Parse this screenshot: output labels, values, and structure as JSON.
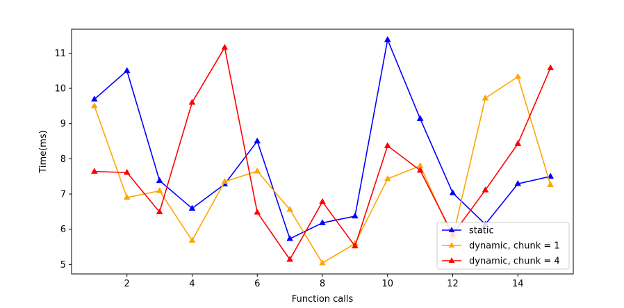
{
  "chart_data": {
    "type": "line",
    "title": "",
    "xlabel": "Function calls",
    "ylabel": "Time(ms)",
    "xlim": [
      0.3,
      15.7
    ],
    "ylim": [
      4.73,
      11.68
    ],
    "xticks": [
      2,
      4,
      6,
      8,
      10,
      12,
      14
    ],
    "yticks": [
      5,
      6,
      7,
      8,
      9,
      10,
      11
    ],
    "grid": false,
    "legend_position": "lower right",
    "x": [
      1,
      2,
      3,
      4,
      5,
      6,
      7,
      8,
      9,
      10,
      11,
      12,
      13,
      14,
      15
    ],
    "series": [
      {
        "name": "static",
        "color": "#0000ff",
        "marker": "triangle-up",
        "values": [
          9.69,
          10.5,
          7.38,
          6.59,
          7.28,
          8.5,
          5.73,
          6.18,
          6.37,
          11.38,
          9.14,
          7.03,
          6.14,
          7.29,
          7.5
        ]
      },
      {
        "name": "dynamic, chunk = 1",
        "color": "#ffa500",
        "marker": "triangle-up",
        "values": [
          9.5,
          6.9,
          7.09,
          5.68,
          7.35,
          7.65,
          6.56,
          5.04,
          5.59,
          7.43,
          7.8,
          5.77,
          9.72,
          10.33,
          7.26
        ]
      },
      {
        "name": "dynamic, chunk = 4",
        "color": "#ff0000",
        "marker": "triangle-up",
        "values": [
          7.64,
          7.61,
          6.49,
          9.6,
          11.16,
          6.48,
          5.14,
          6.78,
          5.52,
          8.37,
          7.67,
          5.85,
          7.11,
          8.43,
          10.58
        ]
      }
    ]
  }
}
